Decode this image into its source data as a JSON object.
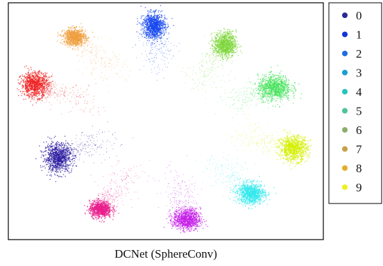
{
  "caption": "DCNet (SphereConv)",
  "chart_data": {
    "type": "scatter",
    "title": "",
    "xlabel": "",
    "ylabel": "",
    "axes_ticks": false,
    "grid": false,
    "legend": {
      "placement": "outside-right",
      "entries": [
        "0",
        "1",
        "2",
        "3",
        "4",
        "5",
        "6",
        "7",
        "8",
        "9"
      ]
    },
    "series": [
      {
        "name": "0",
        "color": "#2a1aa0",
        "cluster": {
          "cx": -0.79,
          "cy": -0.35,
          "spread_x": 0.05,
          "spread_y": 0.07
        },
        "tail": {
          "tx": -0.42,
          "ty": -0.17
        }
      },
      {
        "name": "1",
        "color": "#1446f0",
        "cluster": {
          "cx": -0.09,
          "cy": 0.93,
          "spread_x": 0.04,
          "spread_y": 0.06
        },
        "tail": {
          "tx": -0.05,
          "ty": 0.55
        }
      },
      {
        "name": "2",
        "color": "#7dd63a",
        "cluster": {
          "cx": 0.43,
          "cy": 0.75,
          "spread_x": 0.04,
          "spread_y": 0.06
        },
        "tail": {
          "tx": 0.24,
          "ty": 0.38
        }
      },
      {
        "name": "3",
        "color": "#45e25a",
        "cluster": {
          "cx": 0.79,
          "cy": 0.33,
          "spread_x": 0.06,
          "spread_y": 0.06
        },
        "tail": {
          "tx": 0.45,
          "ty": 0.18
        }
      },
      {
        "name": "4",
        "color": "#d4f000",
        "cluster": {
          "cx": 0.93,
          "cy": -0.26,
          "spread_x": 0.05,
          "spread_y": 0.06
        },
        "tail": {
          "tx": 0.55,
          "ty": -0.13
        }
      },
      {
        "name": "5",
        "color": "#30e8ec",
        "cluster": {
          "cx": 0.62,
          "cy": -0.7,
          "spread_x": 0.05,
          "spread_y": 0.05
        },
        "tail": {
          "tx": 0.36,
          "ty": -0.4
        }
      },
      {
        "name": "6",
        "color": "#c41ee8",
        "cluster": {
          "cx": 0.15,
          "cy": -0.95,
          "spread_x": 0.05,
          "spread_y": 0.05
        },
        "tail": {
          "tx": 0.07,
          "ty": -0.55
        }
      },
      {
        "name": "7",
        "color": "#e81e8c",
        "cluster": {
          "cx": -0.48,
          "cy": -0.85,
          "spread_x": 0.04,
          "spread_y": 0.04
        },
        "tail": {
          "tx": -0.28,
          "ty": -0.5
        }
      },
      {
        "name": "8",
        "color": "#ee2020",
        "cluster": {
          "cx": -0.96,
          "cy": 0.36,
          "spread_x": 0.05,
          "spread_y": 0.06
        },
        "tail": {
          "tx": -0.55,
          "ty": 0.19
        }
      },
      {
        "name": "9",
        "color": "#f0a040",
        "cluster": {
          "cx": -0.67,
          "cy": 0.82,
          "spread_x": 0.04,
          "spread_y": 0.04
        },
        "tail": {
          "tx": -0.38,
          "ty": 0.46
        }
      }
    ],
    "legend_colors": [
      "#2a2a96",
      "#1434d6",
      "#1c6ee0",
      "#189ed2",
      "#24c4c0",
      "#4cc496",
      "#8cae6a",
      "#c8a048",
      "#e4ac2c",
      "#eef020"
    ],
    "xlim": [
      -1.15,
      1.15
    ],
    "ylim": [
      -1.15,
      1.15
    ]
  }
}
